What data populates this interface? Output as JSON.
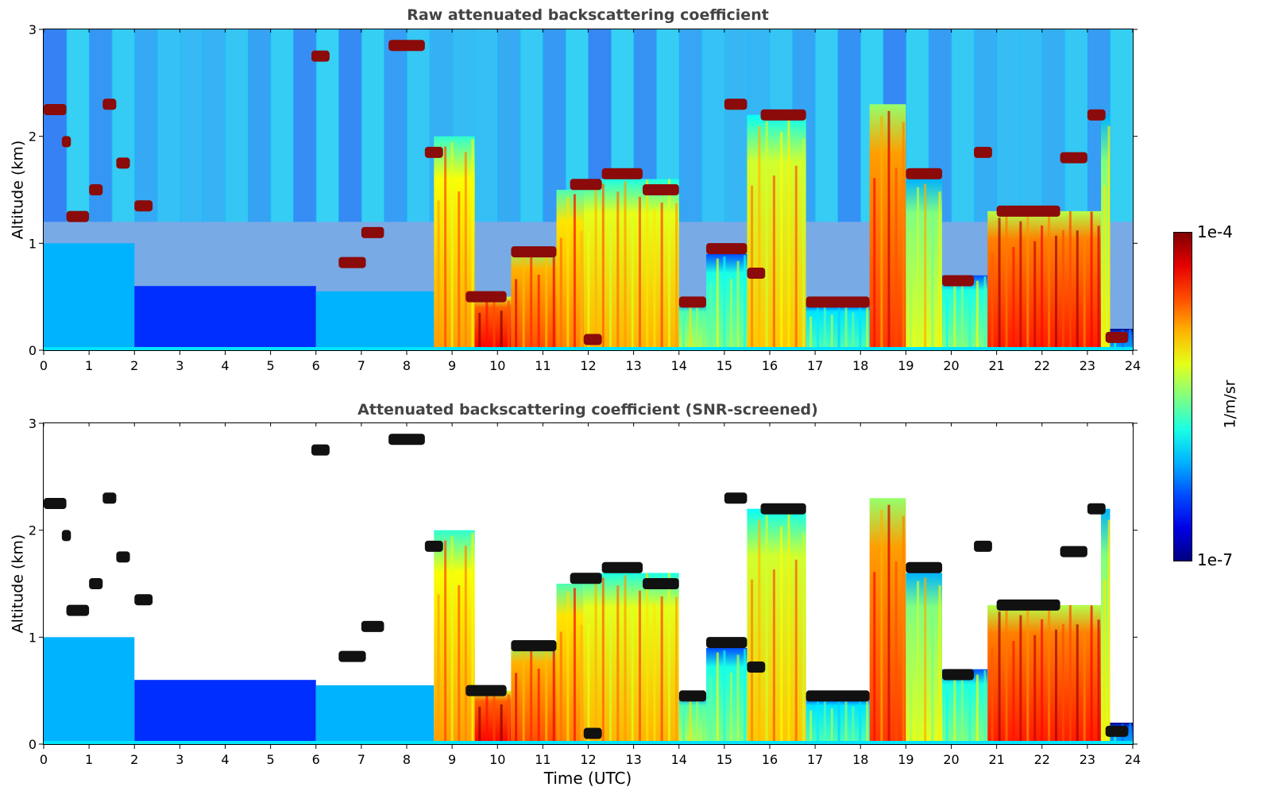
{
  "chart_data": [
    {
      "type": "heatmap",
      "title": "Raw attenuated backscattering coefficient",
      "xlabel": "",
      "ylabel": "Altitude (km)",
      "xlim": [
        0,
        24
      ],
      "ylim": [
        0,
        3
      ],
      "xticks": [
        "0",
        "1",
        "2",
        "3",
        "4",
        "5",
        "6",
        "7",
        "8",
        "9",
        "10",
        "11",
        "12",
        "13",
        "14",
        "15",
        "16",
        "17",
        "18",
        "19",
        "20",
        "21",
        "22",
        "23",
        "24"
      ],
      "yticks": [
        "0",
        "1",
        "2",
        "3"
      ],
      "screened": false
    },
    {
      "type": "heatmap",
      "title": "Attenuated backscattering coefficient (SNR-screened)",
      "xlabel": "Time (UTC)",
      "ylabel": "Altitude (km)",
      "xlim": [
        0,
        24
      ],
      "ylim": [
        0,
        3
      ],
      "xticks": [
        "0",
        "1",
        "2",
        "3",
        "4",
        "5",
        "6",
        "7",
        "8",
        "9",
        "10",
        "11",
        "12",
        "13",
        "14",
        "15",
        "16",
        "17",
        "18",
        "19",
        "20",
        "21",
        "22",
        "23",
        "24"
      ],
      "yticks": [
        "0",
        "1",
        "2",
        "3"
      ],
      "screened": true
    }
  ],
  "colorbar": {
    "label": "1/m/sr",
    "max_label": "1e-4",
    "min_label": "1e-7",
    "scale": "log",
    "colormap": "jet"
  },
  "layers": [
    {
      "t": [
        8.6,
        9.5
      ],
      "bottom": 0.0,
      "top": 2.0,
      "level": 0.72
    },
    {
      "t": [
        9.5,
        10.3
      ],
      "bottom": 0.0,
      "top": 0.5,
      "level": 0.88
    },
    {
      "t": [
        10.3,
        11.3
      ],
      "bottom": 0.0,
      "top": 0.95,
      "level": 0.8
    },
    {
      "t": [
        11.3,
        11.9
      ],
      "bottom": 0.0,
      "top": 1.5,
      "level": 0.75
    },
    {
      "t": [
        11.9,
        14.0
      ],
      "bottom": 0.0,
      "top": 1.6,
      "level": 0.7
    },
    {
      "t": [
        14.0,
        14.6
      ],
      "bottom": 0.0,
      "top": 0.45,
      "level": 0.55
    },
    {
      "t": [
        14.6,
        15.5
      ],
      "bottom": 0.0,
      "top": 0.9,
      "level": 0.5
    },
    {
      "t": [
        15.5,
        16.8
      ],
      "bottom": 0.0,
      "top": 2.2,
      "level": 0.68
    },
    {
      "t": [
        16.8,
        18.2
      ],
      "bottom": 0.0,
      "top": 0.45,
      "level": 0.45
    },
    {
      "t": [
        18.2,
        19.0
      ],
      "bottom": 0.0,
      "top": 2.3,
      "level": 0.82
    },
    {
      "t": [
        19.0,
        19.8
      ],
      "bottom": 0.0,
      "top": 1.6,
      "level": 0.6
    },
    {
      "t": [
        19.8,
        20.8
      ],
      "bottom": 0.0,
      "top": 0.7,
      "level": 0.5
    },
    {
      "t": [
        20.8,
        23.3
      ],
      "bottom": 0.0,
      "top": 1.3,
      "level": 0.85
    },
    {
      "t": [
        23.3,
        23.5
      ],
      "bottom": 0.0,
      "top": 2.2,
      "level": 0.6
    },
    {
      "t": [
        23.5,
        24.0
      ],
      "bottom": 0.0,
      "top": 0.2,
      "level": 0.3
    }
  ],
  "cloud_tops": [
    {
      "t": [
        0.0,
        0.5
      ],
      "alt": 2.25
    },
    {
      "t": [
        0.4,
        0.6
      ],
      "alt": 1.95
    },
    {
      "t": [
        0.5,
        1.0
      ],
      "alt": 1.25
    },
    {
      "t": [
        1.0,
        1.3
      ],
      "alt": 1.5
    },
    {
      "t": [
        1.3,
        1.6
      ],
      "alt": 2.3
    },
    {
      "t": [
        1.6,
        1.9
      ],
      "alt": 1.75
    },
    {
      "t": [
        2.0,
        2.4
      ],
      "alt": 1.35
    },
    {
      "t": [
        5.9,
        6.3
      ],
      "alt": 2.75
    },
    {
      "t": [
        7.6,
        8.4
      ],
      "alt": 2.85
    },
    {
      "t": [
        7.0,
        7.5
      ],
      "alt": 1.1
    },
    {
      "t": [
        6.5,
        7.1
      ],
      "alt": 0.82
    },
    {
      "t": [
        8.4,
        8.8
      ],
      "alt": 1.85
    },
    {
      "t": [
        9.3,
        10.2
      ],
      "alt": 0.5
    },
    {
      "t": [
        10.3,
        11.3
      ],
      "alt": 0.92
    },
    {
      "t": [
        11.6,
        12.3
      ],
      "alt": 1.55
    },
    {
      "t": [
        11.9,
        12.3
      ],
      "alt": 0.1
    },
    {
      "t": [
        12.3,
        13.2
      ],
      "alt": 1.65
    },
    {
      "t": [
        13.2,
        14.0
      ],
      "alt": 1.5
    },
    {
      "t": [
        14.0,
        14.6
      ],
      "alt": 0.45
    },
    {
      "t": [
        14.6,
        15.5
      ],
      "alt": 0.95
    },
    {
      "t": [
        15.5,
        15.9
      ],
      "alt": 0.72
    },
    {
      "t": [
        15.0,
        15.5
      ],
      "alt": 2.3
    },
    {
      "t": [
        15.8,
        16.8
      ],
      "alt": 2.2
    },
    {
      "t": [
        16.8,
        18.2
      ],
      "alt": 0.45
    },
    {
      "t": [
        19.0,
        19.8
      ],
      "alt": 1.65
    },
    {
      "t": [
        19.8,
        20.5
      ],
      "alt": 0.65
    },
    {
      "t": [
        20.5,
        20.9
      ],
      "alt": 1.85
    },
    {
      "t": [
        21.0,
        22.4
      ],
      "alt": 1.3
    },
    {
      "t": [
        22.4,
        23.0
      ],
      "alt": 1.8
    },
    {
      "t": [
        23.0,
        23.4
      ],
      "alt": 2.2
    },
    {
      "t": [
        23.4,
        23.9
      ],
      "alt": 0.12
    }
  ],
  "boundary_layer": [
    {
      "t": [
        0.0,
        2.0
      ],
      "top": 1.0,
      "level": 0.3
    },
    {
      "t": [
        2.0,
        6.0
      ],
      "top": 0.6,
      "level": 0.17
    },
    {
      "t": [
        6.0,
        8.6
      ],
      "top": 0.55,
      "level": 0.3
    }
  ]
}
